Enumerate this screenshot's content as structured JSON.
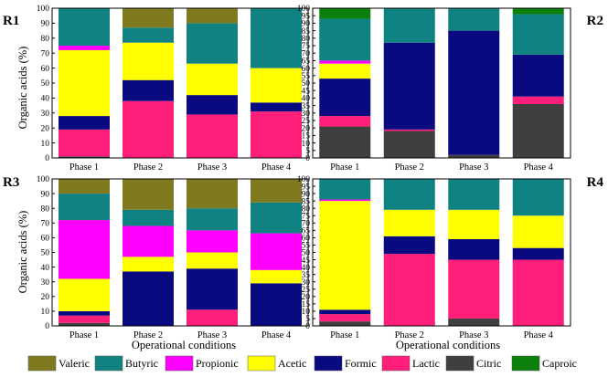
{
  "figure": {
    "ylabel": "Organic acids (%)",
    "xlabel": "Operational conditions"
  },
  "legend": [
    {
      "name": "Valeric",
      "color": "#7f7a20"
    },
    {
      "name": "Butyric",
      "color": "#108282"
    },
    {
      "name": "Propionic",
      "color": "#ff00ff"
    },
    {
      "name": "Acetic",
      "color": "#ffff00"
    },
    {
      "name": "Formic",
      "color": "#0a0a80"
    },
    {
      "name": "Lactic",
      "color": "#ff1f7a"
    },
    {
      "name": "Citric",
      "color": "#3f3f3f"
    },
    {
      "name": "Caproic",
      "color": "#0b800b"
    }
  ],
  "chart_data": [
    {
      "panel": "R1",
      "type": "bar",
      "stacked": true,
      "categories": [
        "Phase 1",
        "Phase 2",
        "Phase 3",
        "Phase 4"
      ],
      "ylim": [
        0,
        100
      ],
      "yticks": [
        0,
        10,
        20,
        30,
        40,
        50,
        60,
        70,
        80,
        90,
        100
      ],
      "series": [
        {
          "name": "Citric",
          "values": [
            1,
            0,
            0,
            0
          ]
        },
        {
          "name": "Lactic",
          "values": [
            18,
            38,
            29,
            31
          ]
        },
        {
          "name": "Formic",
          "values": [
            9,
            14,
            13,
            6
          ]
        },
        {
          "name": "Acetic",
          "values": [
            44,
            25,
            21,
            23
          ]
        },
        {
          "name": "Propionic",
          "values": [
            3,
            0,
            0,
            0
          ]
        },
        {
          "name": "Butyric",
          "values": [
            25,
            10,
            27,
            40
          ]
        },
        {
          "name": "Valeric",
          "values": [
            0,
            13,
            10,
            0
          ]
        },
        {
          "name": "Caproic",
          "values": [
            0,
            0,
            0,
            0
          ]
        }
      ]
    },
    {
      "panel": "R2",
      "type": "bar",
      "stacked": true,
      "categories": [
        "Phase 1",
        "Phase 2",
        "Phase 3",
        "Phase 4"
      ],
      "ylim": [
        0,
        100
      ],
      "yticks": [
        0,
        5,
        10,
        15,
        20,
        25,
        30,
        35,
        40,
        45,
        50,
        55,
        60,
        65,
        70,
        75,
        80,
        85,
        90,
        95,
        100
      ],
      "series": [
        {
          "name": "Citric",
          "values": [
            21,
            18,
            2,
            36
          ]
        },
        {
          "name": "Lactic",
          "values": [
            7,
            1,
            0,
            5
          ]
        },
        {
          "name": "Formic",
          "values": [
            25,
            58,
            83,
            28
          ]
        },
        {
          "name": "Acetic",
          "values": [
            10,
            0,
            0,
            0
          ]
        },
        {
          "name": "Propionic",
          "values": [
            2,
            0,
            0,
            0
          ]
        },
        {
          "name": "Butyric",
          "values": [
            28,
            23,
            15,
            27
          ]
        },
        {
          "name": "Valeric",
          "values": [
            0,
            0,
            0,
            0
          ]
        },
        {
          "name": "Caproic",
          "values": [
            7,
            0,
            0,
            4
          ]
        }
      ]
    },
    {
      "panel": "R3",
      "type": "bar",
      "stacked": true,
      "categories": [
        "Phase 1",
        "Phase 2",
        "Phase 3",
        "Phase 4"
      ],
      "ylim": [
        0,
        100
      ],
      "yticks": [
        0,
        10,
        20,
        30,
        40,
        50,
        60,
        70,
        80,
        90,
        100
      ],
      "series": [
        {
          "name": "Citric",
          "values": [
            2,
            0,
            0,
            0
          ]
        },
        {
          "name": "Lactic",
          "values": [
            5,
            0,
            11,
            0
          ]
        },
        {
          "name": "Formic",
          "values": [
            3,
            37,
            28,
            29
          ]
        },
        {
          "name": "Acetic",
          "values": [
            22,
            10,
            11,
            9
          ]
        },
        {
          "name": "Propionic",
          "values": [
            40,
            21,
            15,
            25
          ]
        },
        {
          "name": "Butyric",
          "values": [
            18,
            11,
            15,
            21
          ]
        },
        {
          "name": "Valeric",
          "values": [
            10,
            21,
            20,
            16
          ]
        },
        {
          "name": "Caproic",
          "values": [
            0,
            0,
            0,
            0
          ]
        }
      ]
    },
    {
      "panel": "R4",
      "type": "bar",
      "stacked": true,
      "categories": [
        "Phase 1",
        "Phase 2",
        "Phase 3",
        "Phase 4"
      ],
      "ylim": [
        0,
        100
      ],
      "yticks": [
        0,
        5,
        10,
        15,
        20,
        25,
        30,
        35,
        40,
        45,
        50,
        55,
        60,
        65,
        70,
        75,
        80,
        85,
        90,
        95,
        100
      ],
      "series": [
        {
          "name": "Citric",
          "values": [
            3,
            0,
            5,
            0
          ]
        },
        {
          "name": "Lactic",
          "values": [
            5,
            49,
            40,
            45
          ]
        },
        {
          "name": "Formic",
          "values": [
            3,
            12,
            14,
            8
          ]
        },
        {
          "name": "Acetic",
          "values": [
            74,
            18,
            20,
            22
          ]
        },
        {
          "name": "Propionic",
          "values": [
            1,
            0,
            0,
            0
          ]
        },
        {
          "name": "Butyric",
          "values": [
            14,
            21,
            21,
            25
          ]
        },
        {
          "name": "Valeric",
          "values": [
            0,
            0,
            0,
            0
          ]
        },
        {
          "name": "Caproic",
          "values": [
            0,
            0,
            0,
            0
          ]
        }
      ]
    }
  ]
}
